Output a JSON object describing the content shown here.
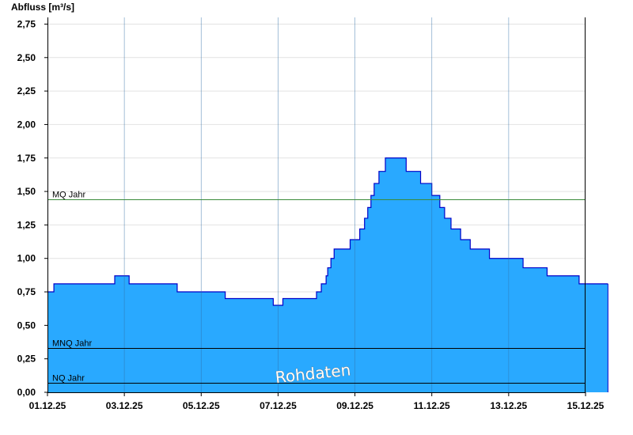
{
  "chart_data": {
    "type": "area",
    "ylabel": "Abfluss [m³/s]",
    "x_range": [
      "01.12.25",
      "15.12.25"
    ],
    "ylim": [
      0,
      2.8
    ],
    "y_ticks": [
      {
        "value": 0,
        "label": "0,00"
      },
      {
        "value": 0.25,
        "label": "0,25"
      },
      {
        "value": 0.5,
        "label": "0,50"
      },
      {
        "value": 0.75,
        "label": "0,75"
      },
      {
        "value": 1.0,
        "label": "1,00"
      },
      {
        "value": 1.25,
        "label": "1,25"
      },
      {
        "value": 1.5,
        "label": "1,50"
      },
      {
        "value": 1.75,
        "label": "1,75"
      },
      {
        "value": 2.0,
        "label": "2,00"
      },
      {
        "value": 2.25,
        "label": "2,25"
      },
      {
        "value": 2.5,
        "label": "2,50"
      },
      {
        "value": 2.75,
        "label": "2,75"
      }
    ],
    "x_ticks": [
      {
        "date": "01.12.25",
        "label": "01.12.25"
      },
      {
        "date": "03.12.25",
        "label": "03.12.25"
      },
      {
        "date": "05.12.25",
        "label": "05.12.25"
      },
      {
        "date": "07.12.25",
        "label": "07.12.25"
      },
      {
        "date": "09.12.25",
        "label": "09.12.25"
      },
      {
        "date": "11.12.25",
        "label": "11.12.25"
      },
      {
        "date": "13.12.25",
        "label": "13.12.25"
      },
      {
        "date": "15.12.25",
        "label": "15.12.25"
      }
    ],
    "reference_lines": [
      {
        "name": "MQ Jahr",
        "value": 1.44,
        "color": "#3a8a3a"
      },
      {
        "name": "MNQ Jahr",
        "value": 0.33,
        "color": "#000000"
      },
      {
        "name": "NQ Jahr",
        "value": 0.07,
        "color": "#000000"
      }
    ],
    "series": [
      {
        "fill_color": "#29a9ff",
        "line_color": "#0000c8",
        "points": [
          [
            "01.12.25 00:00",
            0.75
          ],
          [
            "01.12.25 04:00",
            0.81
          ],
          [
            "02.12.25 18:00",
            0.87
          ],
          [
            "03.12.25 03:00",
            0.81
          ],
          [
            "04.12.25 09:00",
            0.75
          ],
          [
            "05.12.25 15:00",
            0.7
          ],
          [
            "06.12.25 21:00",
            0.65
          ],
          [
            "07.12.25 03:00",
            0.7
          ],
          [
            "08.12.25 00:00",
            0.75
          ],
          [
            "08.12.25 03:00",
            0.81
          ],
          [
            "08.12.25 06:00",
            0.87
          ],
          [
            "08.12.25 07:00",
            0.93
          ],
          [
            "08.12.25 09:00",
            1.0
          ],
          [
            "08.12.25 11:00",
            1.07
          ],
          [
            "08.12.25 21:00",
            1.14
          ],
          [
            "09.12.25 03:00",
            1.22
          ],
          [
            "09.12.25 06:00",
            1.3
          ],
          [
            "09.12.25 08:00",
            1.38
          ],
          [
            "09.12.25 10:00",
            1.47
          ],
          [
            "09.12.25 12:00",
            1.56
          ],
          [
            "09.12.25 15:00",
            1.65
          ],
          [
            "09.12.25 19:00",
            1.75
          ],
          [
            "10.12.25 08:00",
            1.65
          ],
          [
            "10.12.25 17:00",
            1.56
          ],
          [
            "11.12.25 00:00",
            1.47
          ],
          [
            "11.12.25 05:00",
            1.38
          ],
          [
            "11.12.25 08:00",
            1.3
          ],
          [
            "11.12.25 12:00",
            1.22
          ],
          [
            "11.12.25 18:00",
            1.14
          ],
          [
            "12.12.25 00:00",
            1.07
          ],
          [
            "12.12.25 12:00",
            1.0
          ],
          [
            "13.12.25 09:00",
            0.93
          ],
          [
            "14.12.25 00:00",
            0.87
          ],
          [
            "14.12.25 20:00",
            0.81
          ],
          [
            "15.12.25 14:00",
            0.81
          ]
        ]
      }
    ],
    "grid": "horizontal",
    "watermark": "Rohdaten"
  }
}
